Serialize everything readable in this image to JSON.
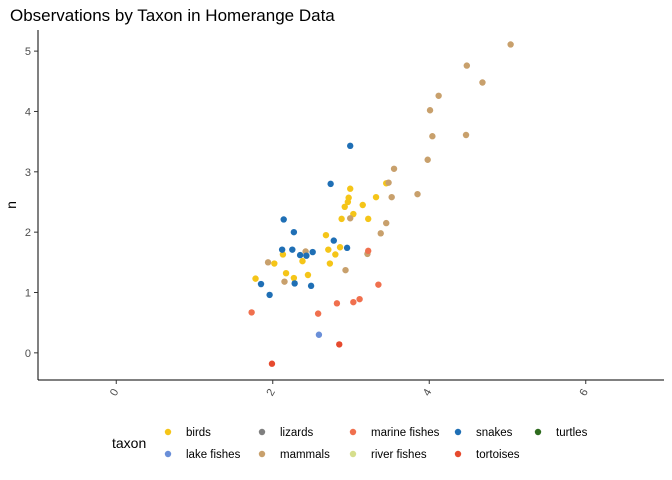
{
  "chart_data": {
    "type": "scatter",
    "title": "Observations by Taxon in Homerange Data",
    "xlabel": "",
    "ylabel": "n",
    "xlim": [
      -1.0,
      7.0
    ],
    "ylim": [
      -0.45,
      5.35
    ],
    "x_ticks": [
      0,
      2,
      4,
      6
    ],
    "x_tick_labels": [
      "0",
      "2",
      "4",
      "6"
    ],
    "y_ticks": [
      0,
      1,
      2,
      3,
      4,
      5
    ],
    "y_tick_labels": [
      "0",
      "1",
      "2",
      "3",
      "4",
      "5"
    ],
    "x_tick_label_rotation": -60,
    "grid": false,
    "legend": {
      "title": "taxon",
      "position": "bottom"
    },
    "series": [
      {
        "name": "birds",
        "color": "#F5C518",
        "points": [
          [
            1.78,
            1.23
          ],
          [
            2.02,
            1.48
          ],
          [
            2.13,
            1.63
          ],
          [
            2.17,
            1.32
          ],
          [
            2.27,
            1.24
          ],
          [
            2.38,
            1.52
          ],
          [
            2.45,
            1.29
          ],
          [
            2.68,
            1.95
          ],
          [
            2.71,
            1.71
          ],
          [
            2.73,
            1.48
          ],
          [
            2.8,
            1.63
          ],
          [
            2.86,
            1.75
          ],
          [
            2.88,
            2.22
          ],
          [
            2.92,
            2.42
          ],
          [
            2.96,
            2.5
          ],
          [
            2.97,
            2.57
          ],
          [
            2.99,
            2.72
          ],
          [
            3.03,
            2.3
          ],
          [
            3.15,
            2.45
          ],
          [
            3.22,
            2.22
          ],
          [
            3.32,
            2.58
          ],
          [
            3.45,
            2.81
          ]
        ]
      },
      {
        "name": "lake fishes",
        "color": "#6A8FD8",
        "points": [
          [
            2.59,
            0.3
          ]
        ]
      },
      {
        "name": "lizards",
        "color": "#7F7F7F",
        "points": []
      },
      {
        "name": "mammals",
        "color": "#C8A06C",
        "points": [
          [
            1.94,
            1.5
          ],
          [
            2.15,
            1.18
          ],
          [
            2.42,
            1.68
          ],
          [
            2.93,
            1.37
          ],
          [
            2.99,
            2.23
          ],
          [
            3.21,
            1.64
          ],
          [
            3.38,
            1.98
          ],
          [
            3.45,
            2.15
          ],
          [
            3.48,
            2.82
          ],
          [
            3.52,
            2.58
          ],
          [
            3.55,
            3.05
          ],
          [
            3.85,
            2.63
          ],
          [
            3.98,
            3.2
          ],
          [
            4.01,
            4.02
          ],
          [
            4.04,
            3.59
          ],
          [
            4.12,
            4.26
          ],
          [
            4.47,
            3.61
          ],
          [
            4.48,
            4.76
          ],
          [
            4.68,
            4.48
          ],
          [
            5.04,
            5.11
          ]
        ]
      },
      {
        "name": "marine fishes",
        "color": "#F0704E",
        "points": [
          [
            1.73,
            0.67
          ],
          [
            2.58,
            0.65
          ],
          [
            2.82,
            0.82
          ],
          [
            3.03,
            0.84
          ],
          [
            3.11,
            0.89
          ],
          [
            3.22,
            1.69
          ],
          [
            3.35,
            1.13
          ]
        ]
      },
      {
        "name": "river fishes",
        "color": "#D6DE8C",
        "points": []
      },
      {
        "name": "snakes",
        "color": "#1F6FB5",
        "points": [
          [
            1.85,
            1.14
          ],
          [
            1.96,
            0.96
          ],
          [
            2.12,
            1.71
          ],
          [
            2.14,
            2.21
          ],
          [
            2.25,
            1.71
          ],
          [
            2.27,
            2.0
          ],
          [
            2.28,
            1.15
          ],
          [
            2.35,
            1.62
          ],
          [
            2.43,
            1.61
          ],
          [
            2.49,
            1.11
          ],
          [
            2.51,
            1.67
          ],
          [
            2.74,
            2.8
          ],
          [
            2.78,
            1.86
          ],
          [
            2.95,
            1.74
          ],
          [
            2.99,
            3.43
          ]
        ]
      },
      {
        "name": "tortoises",
        "color": "#E64A2E",
        "points": [
          [
            1.99,
            -0.18
          ],
          [
            2.85,
            0.14
          ]
        ]
      },
      {
        "name": "turtles",
        "color": "#2E6B1E",
        "points": []
      }
    ]
  }
}
